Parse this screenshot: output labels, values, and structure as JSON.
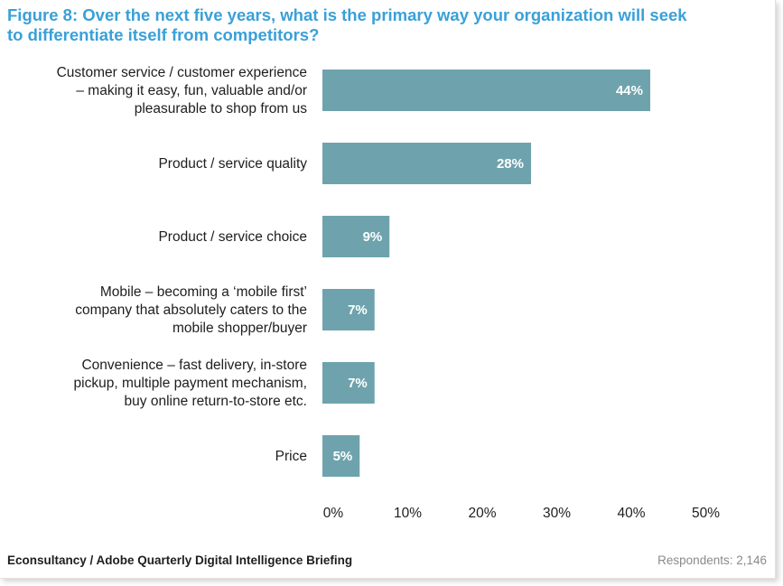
{
  "title_lines": [
    "Figure 8: Over the next five years, what is the primary way your organization will seek",
    "to differentiate itself from competitors?"
  ],
  "footer": {
    "source": "Econsultancy / Adobe Quarterly Digital Intelligence Briefing",
    "respondents": "Respondents: 2,146"
  },
  "colors": {
    "title": "#3aa0d8",
    "bar": "#6ea3ad"
  },
  "chart_data": {
    "type": "bar",
    "orientation": "horizontal",
    "categories": [
      [
        "Customer service / customer experience",
        "– making it easy, fun, valuable and/or",
        "pleasurable to shop from us"
      ],
      [
        "Product / service quality"
      ],
      [
        "Product / service choice"
      ],
      [
        "Mobile – becoming a ‘mobile first’",
        "company that absolutely caters to the",
        "mobile shopper/buyer"
      ],
      [
        "Convenience – fast delivery, in-store",
        "pickup, multiple payment mechanism,",
        "buy online return-to-store etc."
      ],
      [
        "Price"
      ]
    ],
    "values": [
      44,
      28,
      9,
      7,
      7,
      5
    ],
    "value_labels": [
      "44%",
      "28%",
      "9%",
      "7%",
      "7%",
      "5%"
    ],
    "xlim": [
      0,
      50
    ],
    "xticks": [
      "0%",
      "10%",
      "20%",
      "30%",
      "40%",
      "50%"
    ],
    "grid": false,
    "legend": "none"
  }
}
